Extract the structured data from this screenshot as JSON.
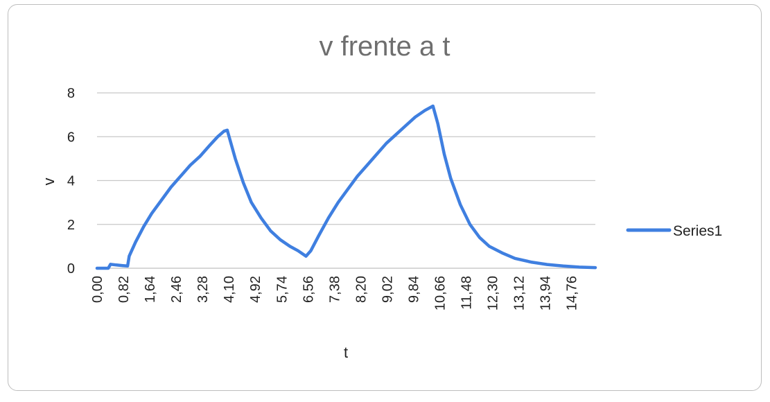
{
  "chart_data": {
    "type": "line",
    "title": "v frente a t",
    "xlabel": "t",
    "ylabel": "v",
    "ylim": [
      0,
      8
    ],
    "yticks": [
      "0",
      "2",
      "4",
      "6",
      "8"
    ],
    "xlim": [
      0,
      15.5
    ],
    "xtick_values": [
      0,
      0.82,
      1.64,
      2.46,
      3.28,
      4.1,
      4.92,
      5.74,
      6.56,
      7.38,
      8.2,
      9.02,
      9.84,
      10.66,
      11.48,
      12.3,
      13.12,
      13.94,
      14.76
    ],
    "xticks": [
      "0,00",
      "0,82",
      "1,64",
      "2,46",
      "3,28",
      "4,10",
      "4,92",
      "5,74",
      "6,56",
      "7,38",
      "8,20",
      "9,02",
      "9,84",
      "10,66",
      "11,48",
      "12,30",
      "13,12",
      "13,94",
      "14,76"
    ],
    "grid": true,
    "legend_position": "right",
    "series": [
      {
        "name": "Series1",
        "color": "#3f7fe0",
        "points": [
          [
            0.0,
            0.0
          ],
          [
            0.35,
            0.0
          ],
          [
            0.42,
            0.18
          ],
          [
            0.6,
            0.15
          ],
          [
            0.8,
            0.12
          ],
          [
            0.95,
            0.1
          ],
          [
            1.0,
            0.55
          ],
          [
            1.2,
            1.2
          ],
          [
            1.45,
            1.9
          ],
          [
            1.7,
            2.5
          ],
          [
            2.0,
            3.1
          ],
          [
            2.3,
            3.7
          ],
          [
            2.6,
            4.2
          ],
          [
            2.9,
            4.7
          ],
          [
            3.2,
            5.1
          ],
          [
            3.5,
            5.6
          ],
          [
            3.75,
            6.0
          ],
          [
            3.95,
            6.25
          ],
          [
            4.05,
            6.3
          ],
          [
            4.3,
            5.0
          ],
          [
            4.55,
            3.9
          ],
          [
            4.8,
            3.0
          ],
          [
            5.1,
            2.3
          ],
          [
            5.4,
            1.7
          ],
          [
            5.7,
            1.3
          ],
          [
            6.0,
            1.0
          ],
          [
            6.25,
            0.8
          ],
          [
            6.5,
            0.55
          ],
          [
            6.65,
            0.8
          ],
          [
            6.9,
            1.5
          ],
          [
            7.2,
            2.3
          ],
          [
            7.5,
            3.0
          ],
          [
            7.8,
            3.6
          ],
          [
            8.1,
            4.2
          ],
          [
            8.4,
            4.7
          ],
          [
            8.7,
            5.2
          ],
          [
            9.0,
            5.7
          ],
          [
            9.3,
            6.1
          ],
          [
            9.6,
            6.5
          ],
          [
            9.9,
            6.9
          ],
          [
            10.2,
            7.2
          ],
          [
            10.45,
            7.4
          ],
          [
            10.6,
            6.6
          ],
          [
            10.8,
            5.2
          ],
          [
            11.0,
            4.1
          ],
          [
            11.3,
            2.9
          ],
          [
            11.6,
            2.0
          ],
          [
            11.9,
            1.4
          ],
          [
            12.2,
            1.0
          ],
          [
            12.6,
            0.7
          ],
          [
            13.0,
            0.45
          ],
          [
            13.5,
            0.28
          ],
          [
            14.0,
            0.17
          ],
          [
            14.5,
            0.1
          ],
          [
            15.0,
            0.05
          ],
          [
            15.5,
            0.03
          ]
        ]
      }
    ]
  }
}
